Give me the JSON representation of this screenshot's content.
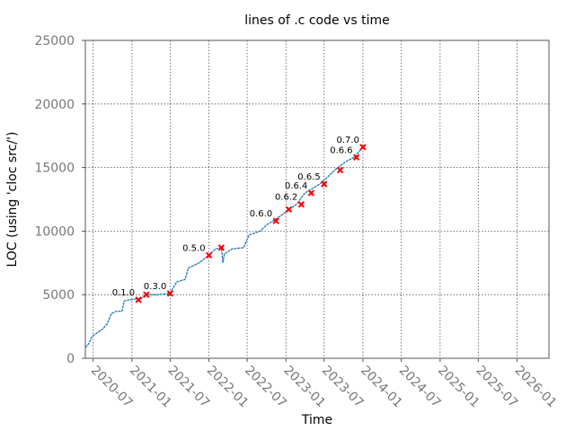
{
  "chart_data": {
    "type": "line",
    "title": "lines of .c code vs time",
    "xlabel": "Time",
    "ylabel": "LOC (using 'cloc src/')",
    "ylim": [
      0,
      25000
    ],
    "xlim": [
      "2020-05-25",
      "2026-06-01"
    ],
    "grid": true,
    "colors": {
      "line": "#1f77b4",
      "release": "#ff0000"
    },
    "y_ticks": [
      0,
      5000,
      10000,
      15000,
      20000,
      25000
    ],
    "y_tick_labels": [
      "0",
      "5000",
      "10000",
      "15000",
      "20000",
      "25000"
    ],
    "x_ticks": [
      "2020-07-01",
      "2021-01-01",
      "2021-07-01",
      "2022-01-01",
      "2022-07-01",
      "2023-01-01",
      "2023-07-01",
      "2024-01-01",
      "2024-07-01",
      "2025-01-01",
      "2025-07-01",
      "2026-01-01"
    ],
    "x_tick_labels": [
      "2020-07",
      "2021-01",
      "2021-07",
      "2022-01",
      "2022-07",
      "2023-01",
      "2023-07",
      "2024-01",
      "2024-07",
      "2025-01",
      "2025-07",
      "2026-01"
    ],
    "series": [
      {
        "name": "LOC",
        "points": [
          [
            "2020-05-25",
            850
          ],
          [
            "2020-06-10",
            1150
          ],
          [
            "2020-06-25",
            1700
          ],
          [
            "2020-07-20",
            2000
          ],
          [
            "2020-08-15",
            2300
          ],
          [
            "2020-09-05",
            2700
          ],
          [
            "2020-09-25",
            3500
          ],
          [
            "2020-10-20",
            3700
          ],
          [
            "2020-11-15",
            3700
          ],
          [
            "2020-11-25",
            4500
          ],
          [
            "2020-12-20",
            4600
          ],
          [
            "2021-02-15",
            4700
          ],
          [
            "2021-03-05",
            5000
          ],
          [
            "2021-05-01",
            5000
          ],
          [
            "2021-06-30",
            5100
          ],
          [
            "2021-08-01",
            6000
          ],
          [
            "2021-09-10",
            6200
          ],
          [
            "2021-09-25",
            7100
          ],
          [
            "2021-11-15",
            7500
          ],
          [
            "2021-12-31",
            8100
          ],
          [
            "2022-02-01",
            8600
          ],
          [
            "2022-03-01",
            8700
          ],
          [
            "2022-03-08",
            7500
          ],
          [
            "2022-03-15",
            8200
          ],
          [
            "2022-04-20",
            8600
          ],
          [
            "2022-06-15",
            8700
          ],
          [
            "2022-07-10",
            9700
          ],
          [
            "2022-09-01",
            10000
          ],
          [
            "2022-10-01",
            10500
          ],
          [
            "2022-11-01",
            10800
          ],
          [
            "2022-12-15",
            11300
          ],
          [
            "2023-01-15",
            11700
          ],
          [
            "2023-02-20",
            12100
          ],
          [
            "2023-04-01",
            13000
          ],
          [
            "2023-05-01",
            13300
          ],
          [
            "2023-06-10",
            13700
          ],
          [
            "2023-07-15",
            14200
          ],
          [
            "2023-08-20",
            14800
          ],
          [
            "2023-10-15",
            15500
          ],
          [
            "2023-11-20",
            15800
          ],
          [
            "2023-12-31",
            16600
          ]
        ]
      }
    ],
    "releases": [
      {
        "label": "0.1.0",
        "date": "2021-02-01",
        "loc": 4600
      },
      {
        "label": "",
        "date": "2021-03-10",
        "loc": 5000
      },
      {
        "label": "0.3.0",
        "date": "2021-07-01",
        "loc": 5100
      },
      {
        "label": "0.5.0",
        "date": "2022-01-01",
        "loc": 8100
      },
      {
        "label": "",
        "date": "2022-03-01",
        "loc": 8700
      },
      {
        "label": "0.6.0",
        "date": "2022-11-15",
        "loc": 10800
      },
      {
        "label": "",
        "date": "2023-01-15",
        "loc": 11700
      },
      {
        "label": "0.6.2",
        "date": "2023-03-15",
        "loc": 12100
      },
      {
        "label": "0.6.4",
        "date": "2023-05-01",
        "loc": 13000
      },
      {
        "label": "0.6.5",
        "date": "2023-07-01",
        "loc": 13700
      },
      {
        "label": "",
        "date": "2023-09-15",
        "loc": 14800
      },
      {
        "label": "0.6.6",
        "date": "2023-12-01",
        "loc": 15800
      },
      {
        "label": "0.7.0",
        "date": "2024-01-01",
        "loc": 16600
      }
    ]
  }
}
